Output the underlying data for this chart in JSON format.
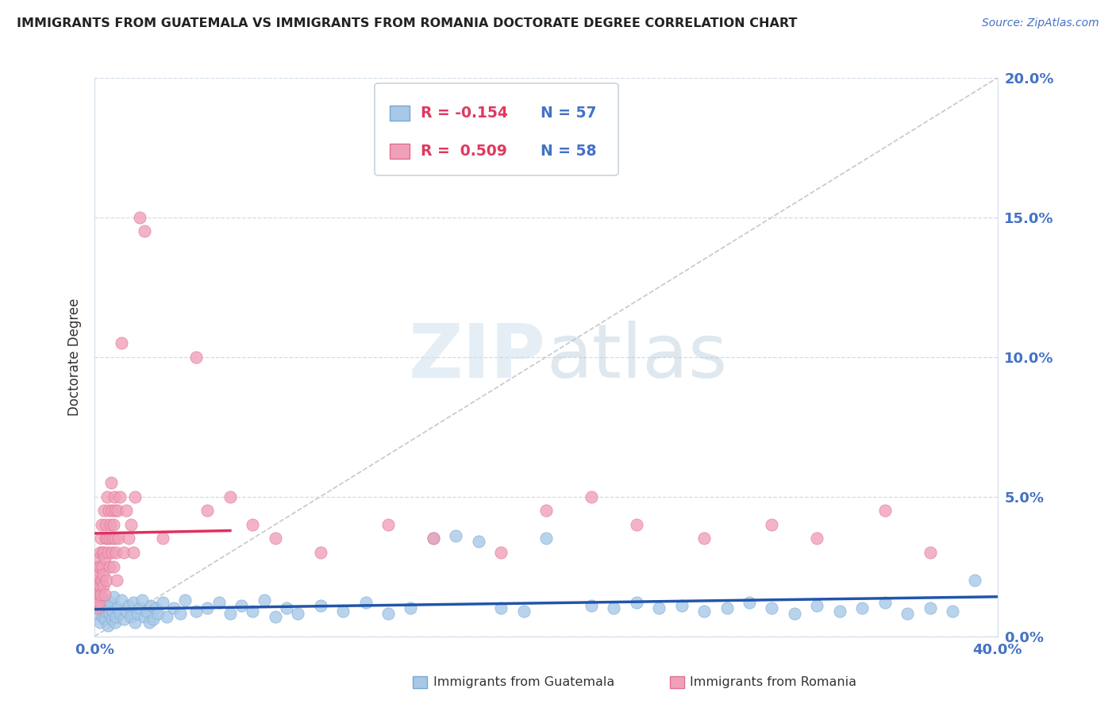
{
  "title": "IMMIGRANTS FROM GUATEMALA VS IMMIGRANTS FROM ROMANIA DOCTORATE DEGREE CORRELATION CHART",
  "source_text": "Source: ZipAtlas.com",
  "ylabel": "Doctorate Degree",
  "ylabel_right_ticks": [
    "0.0%",
    "5.0%",
    "10.0%",
    "15.0%",
    "20.0%"
  ],
  "ylabel_right_vals": [
    0.0,
    5.0,
    10.0,
    15.0,
    20.0
  ],
  "watermark": "ZIPatlas",
  "xlim": [
    0.0,
    40.0
  ],
  "ylim": [
    0.0,
    20.0
  ],
  "guatemala_color": "#a8c8e8",
  "romania_color": "#f0a0b8",
  "guatemala_edge_color": "#7aa8d0",
  "romania_edge_color": "#e07090",
  "guatemala_line_color": "#2255aa",
  "romania_line_color": "#e03060",
  "ref_line_color": "#c8c8c8",
  "grid_color": "#d0dde8",
  "guatemala_points": [
    [
      0.1,
      1.2
    ],
    [
      0.15,
      0.8
    ],
    [
      0.2,
      1.5
    ],
    [
      0.25,
      0.5
    ],
    [
      0.3,
      1.0
    ],
    [
      0.35,
      0.7
    ],
    [
      0.4,
      1.3
    ],
    [
      0.45,
      0.6
    ],
    [
      0.5,
      0.9
    ],
    [
      0.55,
      1.1
    ],
    [
      0.6,
      0.4
    ],
    [
      0.65,
      0.8
    ],
    [
      0.7,
      1.2
    ],
    [
      0.75,
      0.6
    ],
    [
      0.8,
      0.9
    ],
    [
      0.85,
      1.4
    ],
    [
      0.9,
      0.5
    ],
    [
      0.95,
      0.7
    ],
    [
      1.0,
      1.0
    ],
    [
      1.1,
      0.8
    ],
    [
      1.2,
      1.3
    ],
    [
      1.3,
      0.6
    ],
    [
      1.4,
      0.9
    ],
    [
      1.5,
      1.1
    ],
    [
      1.6,
      0.7
    ],
    [
      1.7,
      1.2
    ],
    [
      1.8,
      0.5
    ],
    [
      1.9,
      0.8
    ],
    [
      2.0,
      1.0
    ],
    [
      2.1,
      1.3
    ],
    [
      2.2,
      0.7
    ],
    [
      2.3,
      0.9
    ],
    [
      2.4,
      0.5
    ],
    [
      2.5,
      1.1
    ],
    [
      2.6,
      0.6
    ],
    [
      2.7,
      1.0
    ],
    [
      2.8,
      0.8
    ],
    [
      3.0,
      1.2
    ],
    [
      3.2,
      0.7
    ],
    [
      3.5,
      1.0
    ],
    [
      3.8,
      0.8
    ],
    [
      4.0,
      1.3
    ],
    [
      4.5,
      0.9
    ],
    [
      5.0,
      1.0
    ],
    [
      5.5,
      1.2
    ],
    [
      6.0,
      0.8
    ],
    [
      6.5,
      1.1
    ],
    [
      7.0,
      0.9
    ],
    [
      7.5,
      1.3
    ],
    [
      8.0,
      0.7
    ],
    [
      8.5,
      1.0
    ],
    [
      9.0,
      0.8
    ],
    [
      10.0,
      1.1
    ],
    [
      11.0,
      0.9
    ],
    [
      12.0,
      1.2
    ],
    [
      13.0,
      0.8
    ],
    [
      14.0,
      1.0
    ],
    [
      15.0,
      3.5
    ],
    [
      16.0,
      3.6
    ],
    [
      17.0,
      3.4
    ],
    [
      18.0,
      1.0
    ],
    [
      19.0,
      0.9
    ],
    [
      20.0,
      3.5
    ],
    [
      22.0,
      1.1
    ],
    [
      23.0,
      1.0
    ],
    [
      24.0,
      1.2
    ],
    [
      25.0,
      1.0
    ],
    [
      26.0,
      1.1
    ],
    [
      27.0,
      0.9
    ],
    [
      28.0,
      1.0
    ],
    [
      29.0,
      1.2
    ],
    [
      30.0,
      1.0
    ],
    [
      31.0,
      0.8
    ],
    [
      32.0,
      1.1
    ],
    [
      33.0,
      0.9
    ],
    [
      34.0,
      1.0
    ],
    [
      35.0,
      1.2
    ],
    [
      36.0,
      0.8
    ],
    [
      37.0,
      1.0
    ],
    [
      38.0,
      0.9
    ],
    [
      39.0,
      2.0
    ]
  ],
  "romania_points": [
    [
      0.05,
      1.5
    ],
    [
      0.07,
      2.0
    ],
    [
      0.08,
      1.2
    ],
    [
      0.1,
      2.5
    ],
    [
      0.12,
      1.8
    ],
    [
      0.13,
      1.0
    ],
    [
      0.15,
      2.2
    ],
    [
      0.17,
      1.5
    ],
    [
      0.18,
      2.8
    ],
    [
      0.2,
      1.2
    ],
    [
      0.22,
      3.0
    ],
    [
      0.23,
      1.8
    ],
    [
      0.25,
      2.5
    ],
    [
      0.27,
      1.5
    ],
    [
      0.28,
      3.5
    ],
    [
      0.3,
      2.0
    ],
    [
      0.32,
      4.0
    ],
    [
      0.33,
      2.5
    ],
    [
      0.35,
      3.0
    ],
    [
      0.37,
      1.8
    ],
    [
      0.38,
      2.2
    ],
    [
      0.4,
      4.5
    ],
    [
      0.42,
      3.0
    ],
    [
      0.43,
      1.5
    ],
    [
      0.45,
      2.8
    ],
    [
      0.47,
      3.5
    ],
    [
      0.5,
      4.0
    ],
    [
      0.52,
      2.0
    ],
    [
      0.55,
      3.5
    ],
    [
      0.57,
      5.0
    ],
    [
      0.6,
      3.0
    ],
    [
      0.62,
      4.5
    ],
    [
      0.65,
      3.5
    ],
    [
      0.67,
      2.5
    ],
    [
      0.7,
      4.0
    ],
    [
      0.73,
      5.5
    ],
    [
      0.75,
      3.0
    ],
    [
      0.77,
      4.5
    ],
    [
      0.8,
      3.5
    ],
    [
      0.82,
      2.5
    ],
    [
      0.85,
      4.0
    ],
    [
      0.88,
      5.0
    ],
    [
      0.9,
      3.5
    ],
    [
      0.92,
      4.5
    ],
    [
      0.95,
      3.0
    ],
    [
      0.97,
      2.0
    ],
    [
      1.0,
      4.5
    ],
    [
      1.05,
      3.5
    ],
    [
      1.1,
      5.0
    ],
    [
      1.2,
      10.5
    ],
    [
      1.3,
      3.0
    ],
    [
      1.4,
      4.5
    ],
    [
      1.5,
      3.5
    ],
    [
      1.6,
      4.0
    ],
    [
      1.7,
      3.0
    ],
    [
      1.8,
      5.0
    ],
    [
      2.0,
      15.0
    ],
    [
      2.2,
      14.5
    ],
    [
      3.0,
      3.5
    ],
    [
      4.5,
      10.0
    ],
    [
      5.0,
      4.5
    ],
    [
      6.0,
      5.0
    ],
    [
      7.0,
      4.0
    ],
    [
      8.0,
      3.5
    ],
    [
      10.0,
      3.0
    ],
    [
      13.0,
      4.0
    ],
    [
      15.0,
      3.5
    ],
    [
      18.0,
      3.0
    ],
    [
      20.0,
      4.5
    ],
    [
      22.0,
      5.0
    ],
    [
      24.0,
      4.0
    ],
    [
      27.0,
      3.5
    ],
    [
      30.0,
      4.0
    ],
    [
      32.0,
      3.5
    ],
    [
      35.0,
      4.5
    ],
    [
      37.0,
      3.0
    ]
  ]
}
